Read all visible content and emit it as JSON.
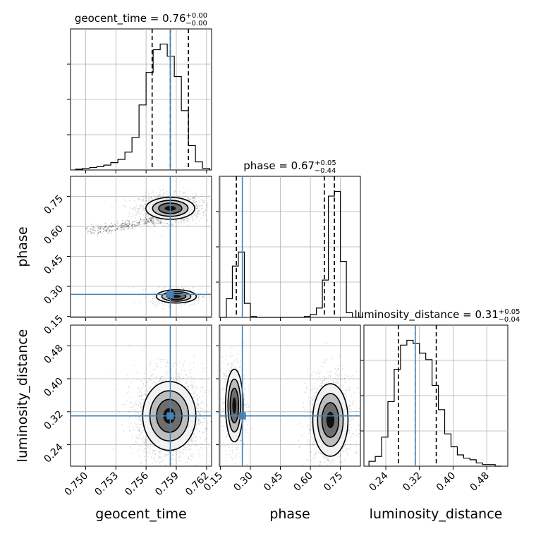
{
  "chart_data": {
    "type": "corner",
    "parameters": [
      "geocent_time",
      "phase",
      "luminosity_distance"
    ],
    "axis_labels": {
      "geocent_time": "geocent_time",
      "phase": "phase",
      "luminosity_distance": "luminosity_distance"
    },
    "titles": [
      {
        "param": "geocent_time",
        "name": "geocent_time",
        "value": "0.76",
        "plus": "+0.00",
        "minus": "−0.00"
      },
      {
        "param": "phase",
        "name": "phase",
        "value": "0.67",
        "plus": "+0.05",
        "minus": "−0.44"
      },
      {
        "param": "luminosity_distance",
        "name": "luminosity_distance",
        "value": "0.31",
        "plus": "+0.05",
        "minus": "−0.04"
      }
    ],
    "ranges": {
      "geocent_time": [
        0.7485,
        0.7625
      ],
      "phase": [
        0.145,
        0.85
      ],
      "luminosity_distance": [
        0.188,
        0.53
      ]
    },
    "ticks": {
      "geocent_time": [
        {
          "v": 0.75,
          "t": "0.750"
        },
        {
          "v": 0.753,
          "t": "0.753"
        },
        {
          "v": 0.756,
          "t": "0.756"
        },
        {
          "v": 0.759,
          "t": "0.759"
        },
        {
          "v": 0.762,
          "t": "0.762"
        }
      ],
      "phase": [
        {
          "v": 0.15,
          "t": "0.15"
        },
        {
          "v": 0.3,
          "t": "0.30"
        },
        {
          "v": 0.45,
          "t": "0.45"
        },
        {
          "v": 0.6,
          "t": "0.60"
        },
        {
          "v": 0.75,
          "t": "0.75"
        }
      ],
      "luminosity_distance": [
        {
          "v": 0.24,
          "t": "0.24"
        },
        {
          "v": 0.32,
          "t": "0.32"
        },
        {
          "v": 0.4,
          "t": "0.40"
        },
        {
          "v": 0.48,
          "t": "0.48"
        }
      ]
    },
    "truths": {
      "geocent_time": 0.7584,
      "phase": 0.26,
      "luminosity_distance": 0.31
    },
    "quantile_lines": {
      "geocent_time": [
        0.7566,
        0.7584,
        0.7602
      ],
      "phase": [
        0.23,
        0.67,
        0.72
      ],
      "luminosity_distance": [
        0.27,
        0.31,
        0.36
      ]
    },
    "histograms": {
      "geocent_time": {
        "edges": [
          0.749,
          0.7497,
          0.7504,
          0.7511,
          0.7518,
          0.7525,
          0.7532,
          0.7539,
          0.7546,
          0.7553,
          0.756,
          0.7567,
          0.7574,
          0.7581,
          0.7588,
          0.7595,
          0.7602,
          0.7609,
          0.7616,
          0.7623
        ],
        "counts": [
          1,
          2,
          3,
          4,
          6,
          9,
          13,
          22,
          40,
          80,
          120,
          148,
          155,
          140,
          115,
          73,
          30,
          10,
          2
        ]
      },
      "phase": {
        "edges": [
          0.15,
          0.18,
          0.21,
          0.24,
          0.27,
          0.3,
          0.33,
          0.36,
          0.39,
          0.42,
          0.45,
          0.48,
          0.51,
          0.54,
          0.57,
          0.6,
          0.63,
          0.66,
          0.69,
          0.72,
          0.75,
          0.78,
          0.81
        ],
        "counts": [
          0,
          20,
          55,
          70,
          15,
          1,
          0,
          0,
          0,
          0,
          0,
          0,
          0,
          0,
          1,
          3,
          10,
          40,
          130,
          135,
          60,
          5
        ]
      },
      "luminosity_distance": {
        "edges": [
          0.2,
          0.215,
          0.23,
          0.245,
          0.26,
          0.275,
          0.29,
          0.305,
          0.32,
          0.335,
          0.35,
          0.365,
          0.38,
          0.395,
          0.41,
          0.425,
          0.44,
          0.455,
          0.47,
          0.485,
          0.5,
          0.515
        ],
        "counts": [
          3,
          6,
          18,
          40,
          60,
          75,
          78,
          76,
          70,
          66,
          50,
          35,
          20,
          12,
          7,
          5,
          4,
          2,
          1,
          1,
          0
        ]
      }
    },
    "modes_2d": {
      "phase_vs_geocent_time": [
        {
          "x": 0.7584,
          "y": 0.69,
          "sx": 0.0011,
          "sy": 0.025
        },
        {
          "x": 0.759,
          "y": 0.25,
          "sx": 0.0009,
          "sy": 0.015
        }
      ],
      "luminosity_distance_vs_geocent_time": [
        {
          "x": 0.7583,
          "y": 0.31,
          "sx": 0.0012,
          "sy": 0.038
        }
      ],
      "luminosity_distance_vs_phase": [
        {
          "x": 0.22,
          "y": 0.335,
          "sx": 0.02,
          "sy": 0.04
        },
        {
          "x": 0.7,
          "y": 0.3,
          "sx": 0.04,
          "sy": 0.04
        }
      ]
    },
    "colors": {
      "truth": "#4682b4",
      "line": "#000000",
      "grid": "#b0b0b0",
      "density": "#000000"
    },
    "grid": true,
    "legend": "none"
  }
}
